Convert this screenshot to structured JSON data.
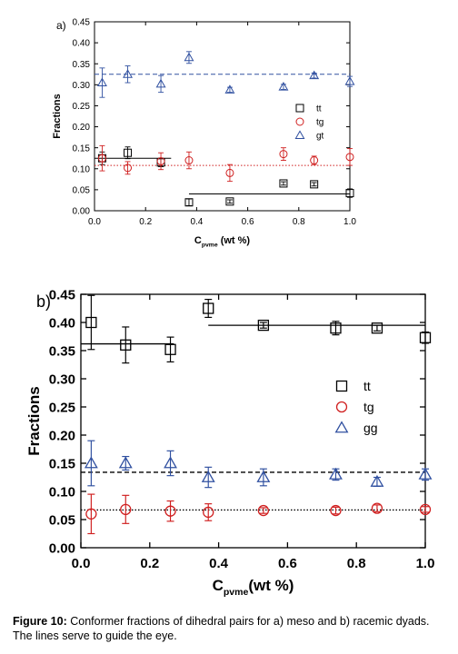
{
  "caption": {
    "label": "Figure 10:",
    "text": " Conformer fractions of dihedral pairs for a) meso and b) racemic dyads. The lines serve to guide the eye."
  },
  "chart_data": [
    {
      "type": "scatter",
      "panel_label": "a)",
      "xlabel": "C",
      "xlabel_sub": "pvme",
      "xlabel_suffix": " (wt %)",
      "ylabel": "Fractions",
      "xlim": [
        0.0,
        1.0
      ],
      "ylim": [
        0.0,
        0.45
      ],
      "xticks": [
        "0.0",
        "0.2",
        "0.4",
        "0.6",
        "0.8",
        "1.0"
      ],
      "yticks": [
        "0.00",
        "0.05",
        "0.10",
        "0.15",
        "0.20",
        "0.25",
        "0.30",
        "0.35",
        "0.40",
        "0.45"
      ],
      "legend_position": "right",
      "series": [
        {
          "name": "tt",
          "marker": "square",
          "color": "#000000",
          "x": [
            0.03,
            0.13,
            0.26,
            0.37,
            0.53,
            0.74,
            0.86,
            1.0
          ],
          "y": [
            0.125,
            0.138,
            0.115,
            0.02,
            0.022,
            0.065,
            0.063,
            0.042
          ],
          "err": [
            0.015,
            0.014,
            0.01,
            0.008,
            0.004,
            0.004,
            0.004,
            0.01
          ]
        },
        {
          "name": "tg",
          "marker": "circle",
          "color": "#d02020",
          "x": [
            0.03,
            0.13,
            0.26,
            0.37,
            0.53,
            0.74,
            0.86,
            1.0
          ],
          "y": [
            0.125,
            0.102,
            0.118,
            0.12,
            0.09,
            0.135,
            0.12,
            0.128
          ],
          "err": [
            0.03,
            0.015,
            0.02,
            0.02,
            0.02,
            0.015,
            0.01,
            0.02
          ]
        },
        {
          "name": "gt",
          "marker": "triangle",
          "color": "#3050a0",
          "x": [
            0.03,
            0.13,
            0.26,
            0.37,
            0.53,
            0.74,
            0.86,
            1.0
          ],
          "y": [
            0.305,
            0.325,
            0.302,
            0.365,
            0.288,
            0.295,
            0.322,
            0.308
          ],
          "err": [
            0.035,
            0.02,
            0.02,
            0.014,
            0.006,
            0.006,
            0.006,
            0.012
          ]
        }
      ],
      "guide_lines": [
        {
          "x": [
            0.0,
            0.3
          ],
          "y": 0.125,
          "style": "solid",
          "color": "#000000"
        },
        {
          "x": [
            0.37,
            1.0
          ],
          "y": 0.04,
          "style": "solid",
          "color": "#000000"
        },
        {
          "x": [
            0.0,
            1.0
          ],
          "y": 0.108,
          "style": "dotted",
          "color": "#d02020"
        },
        {
          "x": [
            0.0,
            1.0
          ],
          "y": 0.325,
          "style": "dashed",
          "color": "#3050a0"
        }
      ]
    },
    {
      "type": "scatter",
      "panel_label": "b)",
      "xlabel": "C",
      "xlabel_sub": "pvme",
      "xlabel_suffix": "(wt %)",
      "ylabel": "Fractions",
      "xlim": [
        0.0,
        1.0
      ],
      "ylim": [
        0.0,
        0.45
      ],
      "xticks": [
        "0.0",
        "0.2",
        "0.4",
        "0.6",
        "0.8",
        "1.0"
      ],
      "yticks": [
        "0.00",
        "0.05",
        "0.10",
        "0.15",
        "0.20",
        "0.25",
        "0.30",
        "0.35",
        "0.40",
        "0.45"
      ],
      "legend_position": "right",
      "series": [
        {
          "name": "tt",
          "marker": "square",
          "color": "#000000",
          "x": [
            0.03,
            0.13,
            0.26,
            0.37,
            0.53,
            0.74,
            0.86,
            1.0
          ],
          "y": [
            0.4,
            0.36,
            0.352,
            0.425,
            0.395,
            0.39,
            0.39,
            0.373
          ],
          "err": [
            0.048,
            0.032,
            0.022,
            0.016,
            0.005,
            0.012,
            0.005,
            0.01
          ]
        },
        {
          "name": "tg",
          "marker": "circle",
          "color": "#d02020",
          "x": [
            0.03,
            0.13,
            0.26,
            0.37,
            0.53,
            0.74,
            0.86,
            1.0
          ],
          "y": [
            0.06,
            0.068,
            0.065,
            0.063,
            0.066,
            0.066,
            0.07,
            0.068
          ],
          "err": [
            0.035,
            0.025,
            0.018,
            0.015,
            0.005,
            0.006,
            0.006,
            0.005
          ]
        },
        {
          "name": "gg",
          "marker": "triangle",
          "color": "#3050a0",
          "x": [
            0.03,
            0.13,
            0.26,
            0.37,
            0.53,
            0.74,
            0.86,
            1.0
          ],
          "y": [
            0.15,
            0.15,
            0.15,
            0.125,
            0.125,
            0.13,
            0.117,
            0.13
          ],
          "err": [
            0.04,
            0.012,
            0.022,
            0.018,
            0.015,
            0.01,
            0.008,
            0.01
          ]
        }
      ],
      "guide_lines": [
        {
          "x": [
            0.0,
            0.27
          ],
          "y": 0.362,
          "style": "solid",
          "color": "#000000"
        },
        {
          "x": [
            0.37,
            1.0
          ],
          "y": 0.395,
          "style": "solid",
          "color": "#000000"
        },
        {
          "x": [
            0.0,
            1.0
          ],
          "y": 0.134,
          "style": "dashed",
          "color": "#000000"
        },
        {
          "x": [
            0.0,
            1.0
          ],
          "y": 0.067,
          "style": "dotted",
          "color": "#000000"
        }
      ]
    }
  ]
}
